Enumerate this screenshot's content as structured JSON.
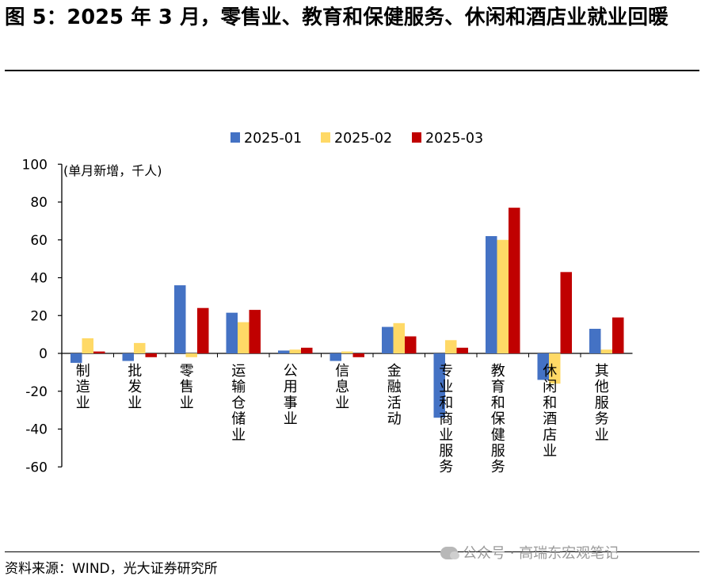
{
  "header": {
    "title": "图 5：2025 年 3 月，零售业、教育和保健服务、休闲和酒店业就业回暖"
  },
  "footer": {
    "source": "资料来源：WIND，光大证券研究所",
    "watermark": "公众号 · 高瑞东宏观笔记"
  },
  "chart_data": {
    "type": "bar",
    "unit_label": "(单月新增，千人)",
    "categories": [
      "制造业",
      "批发业",
      "零售业",
      "运输仓储业",
      "公用事业",
      "信息业",
      "金融活动",
      "专业和商业服务",
      "教育和保健服务",
      "休闲和酒店业",
      "其他服务业"
    ],
    "series": [
      {
        "name": "2025-01",
        "color": "#4472C4",
        "values": [
          -5,
          -4,
          36,
          21.5,
          1.5,
          -4,
          14,
          -34,
          62,
          -14,
          13
        ]
      },
      {
        "name": "2025-02",
        "color": "#FFD966",
        "values": [
          8,
          5.5,
          -2,
          16.5,
          2,
          1,
          16,
          7,
          60,
          -16,
          2
        ]
      },
      {
        "name": "2025-03",
        "color": "#C00000",
        "values": [
          1,
          -2,
          24,
          23,
          3,
          -2,
          9,
          3,
          77,
          43,
          19
        ]
      }
    ],
    "ylim": [
      -60,
      100
    ],
    "yticks": [
      100,
      80,
      60,
      40,
      20,
      0,
      -20,
      -40,
      -60
    ],
    "legend_position": "top-center",
    "grid": false
  }
}
